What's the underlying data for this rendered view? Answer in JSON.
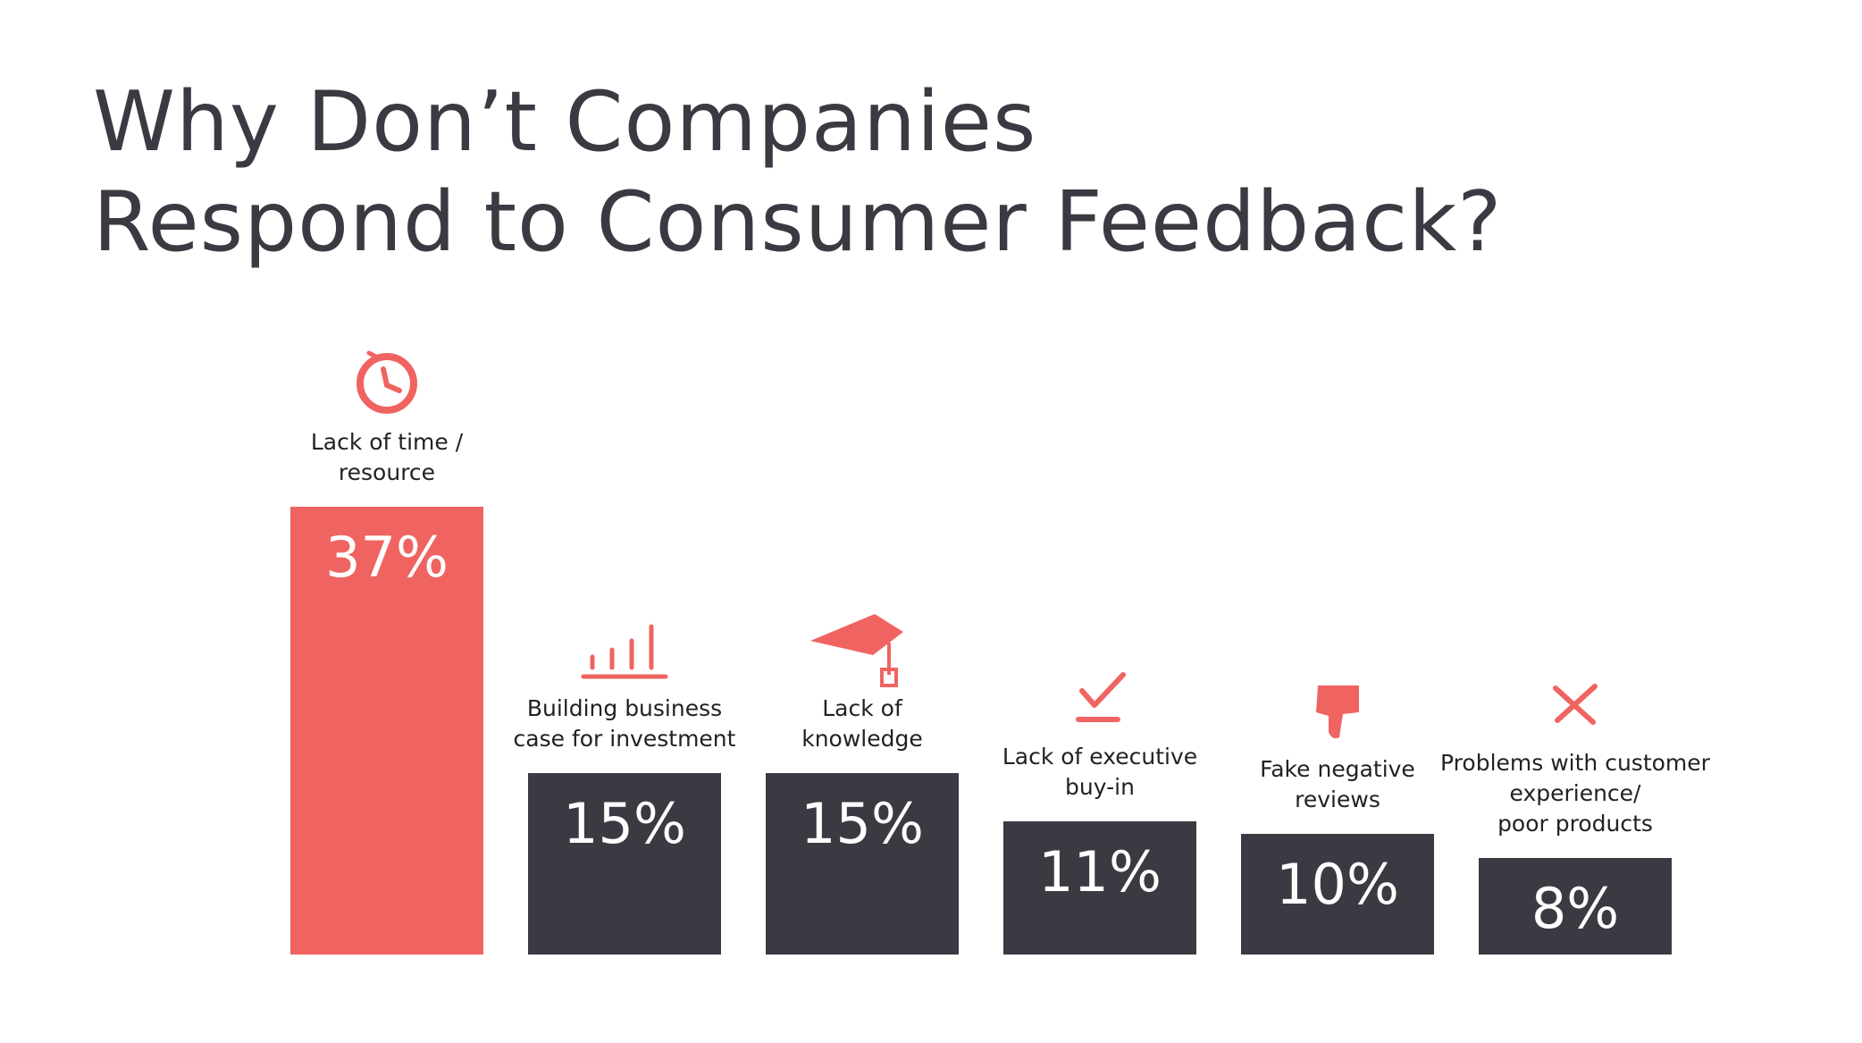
{
  "colors": {
    "accent": "#ef6461",
    "bar_dark": "#3a3b42",
    "title": "#3a3b42",
    "label": "#222226",
    "value_text": "#ffffff"
  },
  "chart_data": {
    "type": "bar",
    "title": "Why Don’t Companies Respond to Consumer Feedback?",
    "title_lines": [
      "Why Don’t Companies",
      "Respond to Consumer Feedback?"
    ],
    "xlabel": "",
    "ylabel": "",
    "ylim": [
      0,
      37
    ],
    "grid": false,
    "categories": [
      "Lack of time / resource",
      "Building business case for investment",
      "Lack of knowledge",
      "Lack of executive buy-in",
      "Fake negative reviews",
      "Problems with customer experience/ poor products"
    ],
    "category_lines": [
      [
        "Lack of time /",
        "resource"
      ],
      [
        "Building business",
        "case for investment"
      ],
      [
        "Lack of",
        "knowledge"
      ],
      [
        "Lack of executive",
        "buy-in"
      ],
      [
        "Fake negative",
        "reviews"
      ],
      [
        "Problems with customer",
        "experience/",
        "poor products"
      ]
    ],
    "values": [
      37,
      15,
      15,
      11,
      10,
      8
    ],
    "value_labels": [
      "37%",
      "15%",
      "15%",
      "11%",
      "10%",
      "8%"
    ],
    "bar_colors": [
      "#ef6461",
      "#3a3b42",
      "#3a3b42",
      "#3a3b42",
      "#3a3b42",
      "#3a3b42"
    ],
    "icons": [
      "clock-icon",
      "bar-chart-icon",
      "graduation-cap-icon",
      "checkmark-icon",
      "thumbs-down-icon",
      "x-mark-icon"
    ]
  }
}
